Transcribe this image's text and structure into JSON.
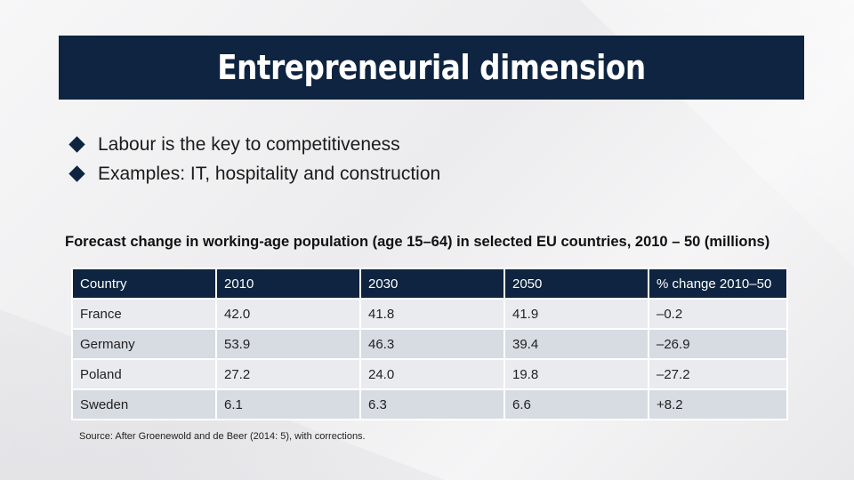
{
  "slide": {
    "title": "Entrepreneurial dimension",
    "bullets": [
      "Labour is the key to competitiveness",
      "Examples: IT, hospitality and construction"
    ],
    "table_caption": "Forecast change in working-age population (age 15–64) in selected EU countries, 2010 – 50 (millions)",
    "source": "Source: After Groenewold and de Beer (2014: 5), with corrections."
  },
  "colors": {
    "title_bar": "#0e2440",
    "row_light": "#e9ebef",
    "row_dark": "#d7dbe2"
  },
  "chart_data": {
    "type": "table",
    "title": "Forecast change in working-age population (age 15–64) in selected EU countries, 2010 – 50 (millions)",
    "columns": [
      "Country",
      "2010",
      "2030",
      "2050",
      "% change 2010–50"
    ],
    "rows": [
      [
        "France",
        "42.0",
        "41.8",
        "41.9",
        "–0.2"
      ],
      [
        "Germany",
        "53.9",
        "46.3",
        "39.4",
        "–26.9"
      ],
      [
        "Poland",
        "27.2",
        "24.0",
        "19.8",
        "–27.2"
      ],
      [
        "Sweden",
        "6.1",
        "6.3",
        "6.6",
        "+8.2"
      ]
    ]
  }
}
